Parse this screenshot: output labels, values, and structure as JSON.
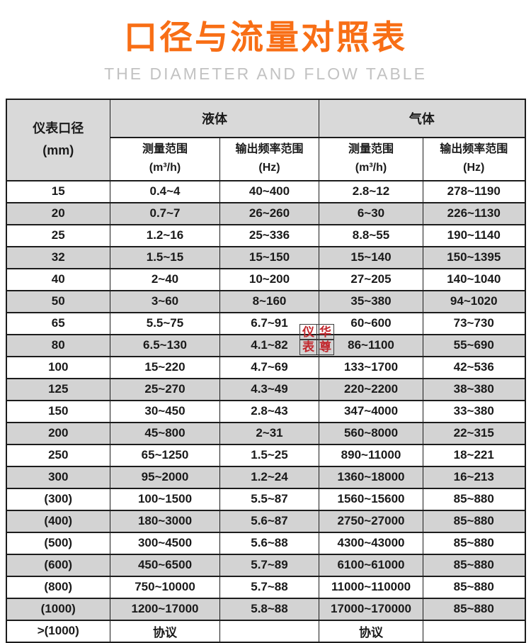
{
  "colors": {
    "accent_orange": "#f86e15",
    "subtitle_gray": "#c2c2c2",
    "header_gray_bg": "#d9d9d9",
    "alt_row_gray_bg": "#d3d3d3",
    "border_dark": "#1c1c1c",
    "watermark_red": "#c1272d"
  },
  "chart_data": {
    "type": "table",
    "title": "口径与流量对照表",
    "subtitle": "THE DIAMETER AND FLOW TABLE",
    "header": {
      "diameter_line1": "仪表口径",
      "diameter_line2": "(mm)",
      "group_liquid": "液体",
      "group_gas": "气体",
      "sub_range_line1": "测量范围",
      "sub_range_line2": "(m³/h)",
      "sub_freq_line1": "输出频率范围",
      "sub_freq_line2": "(Hz)"
    },
    "columns": [
      "仪表口径(mm)",
      "液体 测量范围(m³/h)",
      "液体 输出频率范围(Hz)",
      "气体 测量范围(m³/h)",
      "气体 输出频率范围(Hz)"
    ],
    "rows": [
      [
        "15",
        "0.4~4",
        "40~400",
        "2.8~12",
        "278~1190"
      ],
      [
        "20",
        "0.7~7",
        "26~260",
        "6~30",
        "226~1130"
      ],
      [
        "25",
        "1.2~16",
        "25~336",
        "8.8~55",
        "190~1140"
      ],
      [
        "32",
        "1.5~15",
        "15~150",
        "15~140",
        "150~1395"
      ],
      [
        "40",
        "2~40",
        "10~200",
        "27~205",
        "140~1040"
      ],
      [
        "50",
        "3~60",
        "8~160",
        "35~380",
        "94~1020"
      ],
      [
        "65",
        "5.5~75",
        "6.7~91",
        "60~600",
        "73~730"
      ],
      [
        "80",
        "6.5~130",
        "4.1~82",
        "86~1100",
        "55~690"
      ],
      [
        "100",
        "15~220",
        "4.7~69",
        "133~1700",
        "42~536"
      ],
      [
        "125",
        "25~270",
        "4.3~49",
        "220~2200",
        "38~380"
      ],
      [
        "150",
        "30~450",
        "2.8~43",
        "347~4000",
        "33~380"
      ],
      [
        "200",
        "45~800",
        "2~31",
        "560~8000",
        "22~315"
      ],
      [
        "250",
        "65~1250",
        "1.5~25",
        "890~11000",
        "18~221"
      ],
      [
        "300",
        "95~2000",
        "1.2~24",
        "1360~18000",
        "16~213"
      ],
      [
        "(300)",
        "100~1500",
        "5.5~87",
        "1560~15600",
        "85~880"
      ],
      [
        "(400)",
        "180~3000",
        "5.6~87",
        "2750~27000",
        "85~880"
      ],
      [
        "(500)",
        "300~4500",
        "5.6~88",
        "4300~43000",
        "85~880"
      ],
      [
        "(600)",
        "450~6500",
        "5.7~89",
        "6100~61000",
        "85~880"
      ],
      [
        "(800)",
        "750~10000",
        "5.7~88",
        "11000~110000",
        "85~880"
      ],
      [
        "(1000)",
        "1200~17000",
        "5.8~88",
        "17000~170000",
        "85~880"
      ],
      [
        ">(1000)",
        "协议",
        "",
        "协议",
        ""
      ]
    ],
    "layout": {
      "row_shading": "alternate rows shaded gray starting with second data row",
      "grid": true
    }
  },
  "watermark": {
    "top_left": "仪",
    "top_right": "华",
    "bottom_left": "表",
    "bottom_right": "尊"
  }
}
